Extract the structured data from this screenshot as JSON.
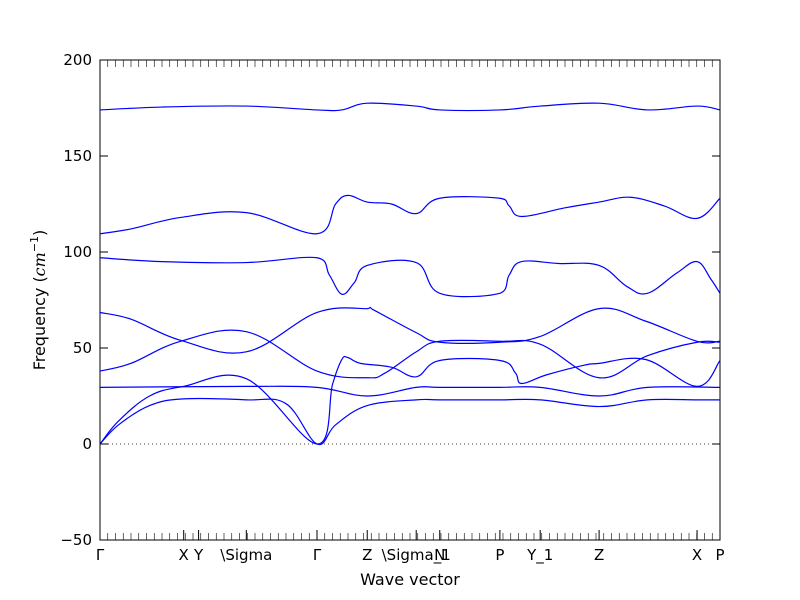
{
  "chart_data": {
    "type": "line",
    "xlabel": "Wave vector",
    "ylabel_main": "Frequency (",
    "ylabel_unit": "cm",
    "ylabel_exp": "−1",
    "ylabel_close": ")",
    "ylim": [
      -50,
      200
    ],
    "xlim": [
      0,
      1
    ],
    "yticks": [
      -50,
      0,
      50,
      100,
      150,
      200
    ],
    "ytick_labels": [
      "−50",
      "0",
      "50",
      "100",
      "150",
      "200"
    ],
    "zero_line": true,
    "grid": false,
    "line_color": "#0000ff",
    "kpoints": [
      {
        "pos": 0.0,
        "label": "Γ"
      },
      {
        "pos": 0.135,
        "label": "X"
      },
      {
        "pos": 0.159,
        "label": "Y"
      },
      {
        "pos": 0.236,
        "label": "\\Sigma"
      },
      {
        "pos": 0.35,
        "label": "Γ"
      },
      {
        "pos": 0.431,
        "label": "Z"
      },
      {
        "pos": 0.51,
        "label": "\\Sigma_1"
      },
      {
        "pos": 0.548,
        "label": "N"
      },
      {
        "pos": 0.645,
        "label": "P"
      },
      {
        "pos": 0.71,
        "label": "Y_1"
      },
      {
        "pos": 0.805,
        "label": "Z"
      },
      {
        "pos": 0.963,
        "label": "X"
      },
      {
        "pos": 1.0,
        "label": "P"
      }
    ],
    "series": [
      {
        "points": [
          [
            0,
            174
          ],
          [
            0.1,
            175.5
          ],
          [
            0.236,
            176
          ],
          [
            0.35,
            174
          ],
          [
            0.39,
            174
          ],
          [
            0.431,
            177.5
          ],
          [
            0.51,
            176
          ],
          [
            0.548,
            174
          ],
          [
            0.645,
            174
          ],
          [
            0.71,
            176
          ],
          [
            0.805,
            177.5
          ],
          [
            0.883,
            174
          ],
          [
            0.963,
            176
          ],
          [
            1,
            174
          ]
        ]
      },
      {
        "points": [
          [
            0,
            109.5
          ],
          [
            0.05,
            112
          ],
          [
            0.13,
            118
          ],
          [
            0.236,
            120.5
          ],
          [
            0.35,
            109.5
          ],
          [
            0.38,
            125
          ],
          [
            0.4,
            129.5
          ],
          [
            0.431,
            126
          ],
          [
            0.47,
            125
          ],
          [
            0.51,
            120
          ],
          [
            0.548,
            128
          ],
          [
            0.645,
            128
          ],
          [
            0.66,
            124
          ],
          [
            0.68,
            118.5
          ],
          [
            0.75,
            123
          ],
          [
            0.805,
            126
          ],
          [
            0.855,
            128.5
          ],
          [
            0.91,
            124
          ],
          [
            0.963,
            117.5
          ],
          [
            1,
            128
          ]
        ]
      },
      {
        "points": [
          [
            0,
            97
          ],
          [
            0.1,
            95
          ],
          [
            0.236,
            94.5
          ],
          [
            0.35,
            97
          ],
          [
            0.37,
            88
          ],
          [
            0.39,
            78
          ],
          [
            0.41,
            84
          ],
          [
            0.431,
            93
          ],
          [
            0.51,
            94.5
          ],
          [
            0.548,
            78.5
          ],
          [
            0.645,
            78.5
          ],
          [
            0.66,
            88
          ],
          [
            0.68,
            95
          ],
          [
            0.74,
            94
          ],
          [
            0.805,
            93
          ],
          [
            0.85,
            82
          ],
          [
            0.883,
            78.5
          ],
          [
            0.93,
            89
          ],
          [
            0.963,
            95
          ],
          [
            0.985,
            86
          ],
          [
            1,
            78.5
          ]
        ]
      },
      {
        "points": [
          [
            0,
            68.5
          ],
          [
            0.05,
            65
          ],
          [
            0.13,
            54
          ],
          [
            0.236,
            48
          ],
          [
            0.35,
            68.5
          ],
          [
            0.431,
            70.5
          ],
          [
            0.44,
            70
          ],
          [
            0.51,
            58
          ],
          [
            0.548,
            53
          ],
          [
            0.645,
            53
          ],
          [
            0.71,
            56
          ],
          [
            0.805,
            70.5
          ],
          [
            0.88,
            64
          ],
          [
            0.963,
            53.5
          ],
          [
            1,
            53.5
          ]
        ]
      },
      {
        "points": [
          [
            0,
            38
          ],
          [
            0.05,
            42
          ],
          [
            0.13,
            53.5
          ],
          [
            0.236,
            58.5
          ],
          [
            0.35,
            38
          ],
          [
            0.431,
            34.5
          ],
          [
            0.46,
            37
          ],
          [
            0.51,
            48
          ],
          [
            0.548,
            53.5
          ],
          [
            0.645,
            53.5
          ],
          [
            0.71,
            52
          ],
          [
            0.805,
            34.5
          ],
          [
            0.883,
            46
          ],
          [
            0.963,
            53
          ],
          [
            1,
            53
          ]
        ]
      },
      {
        "points": [
          [
            0,
            29.5
          ],
          [
            0.236,
            30
          ],
          [
            0.35,
            29.5
          ],
          [
            0.431,
            25
          ],
          [
            0.51,
            29.5
          ],
          [
            0.548,
            29.5
          ],
          [
            0.645,
            29.5
          ],
          [
            0.71,
            29.5
          ],
          [
            0.805,
            25
          ],
          [
            0.883,
            29.5
          ],
          [
            1,
            29.5
          ]
        ]
      },
      {
        "points": [
          [
            0,
            0
          ],
          [
            0.03,
            12
          ],
          [
            0.08,
            25
          ],
          [
            0.135,
            30
          ],
          [
            0.236,
            34
          ],
          [
            0.35,
            0
          ],
          [
            0.375,
            31
          ],
          [
            0.39,
            44
          ],
          [
            0.4,
            45
          ],
          [
            0.42,
            42
          ],
          [
            0.47,
            40
          ],
          [
            0.51,
            35
          ],
          [
            0.548,
            43.5
          ],
          [
            0.645,
            43.5
          ],
          [
            0.67,
            37
          ],
          [
            0.68,
            31.5
          ],
          [
            0.72,
            36
          ],
          [
            0.78,
            41
          ],
          [
            0.805,
            42
          ],
          [
            0.88,
            44
          ],
          [
            0.963,
            30
          ],
          [
            1,
            43.5
          ]
        ]
      },
      {
        "points": [
          [
            0,
            0
          ],
          [
            0.03,
            10
          ],
          [
            0.08,
            20
          ],
          [
            0.135,
            23.5
          ],
          [
            0.236,
            23
          ],
          [
            0.3,
            21
          ],
          [
            0.35,
            0
          ],
          [
            0.38,
            10
          ],
          [
            0.431,
            20
          ],
          [
            0.51,
            23
          ],
          [
            0.548,
            23
          ],
          [
            0.645,
            23
          ],
          [
            0.71,
            23
          ],
          [
            0.805,
            19.5
          ],
          [
            0.883,
            23
          ],
          [
            0.963,
            23
          ],
          [
            1,
            23
          ]
        ]
      }
    ]
  }
}
